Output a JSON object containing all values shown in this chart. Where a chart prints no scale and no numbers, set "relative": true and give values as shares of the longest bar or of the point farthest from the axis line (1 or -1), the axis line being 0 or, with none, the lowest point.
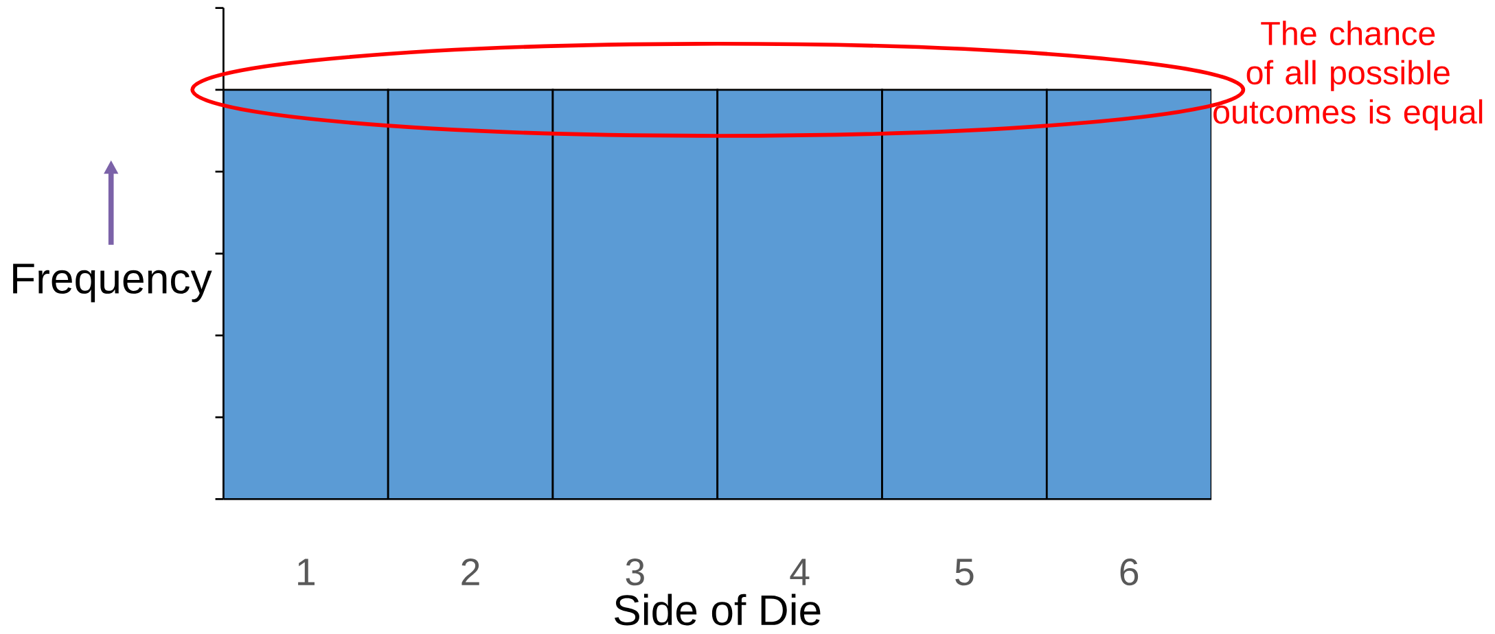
{
  "chart_data": {
    "type": "bar",
    "relative": true,
    "categories": [
      "1",
      "2",
      "3",
      "4",
      "5",
      "6"
    ],
    "values": [
      1,
      1,
      1,
      1,
      1,
      1
    ],
    "color": "#5b9bd5",
    "xlabel": "Side of Die",
    "ylabel": "Frequency",
    "annotations": [
      "The chance of all possible outcomes is equal"
    ]
  }
}
